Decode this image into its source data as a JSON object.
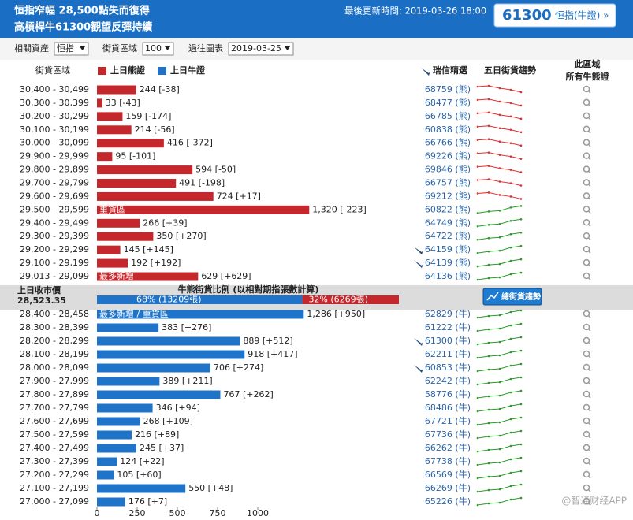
{
  "header": {
    "title_lines": [
      "恒指窄幅 28,500點失而復得",
      "高槓桿牛61300觀望反彈持續"
    ],
    "updated": "最後更新時間: 2019-03-26 18:00",
    "badge_code": "61300",
    "badge_name": "恒指(牛證) »"
  },
  "controls": [
    {
      "label": "相關資產",
      "value": "恒指"
    },
    {
      "label": "街貨區域",
      "value": "100"
    },
    {
      "label": "過往圖表",
      "value": "2019-03-25"
    }
  ],
  "columns": {
    "range": "街貨區域",
    "bear_legend": "上日熊證",
    "bull_legend": "上日牛證",
    "pick": "瑞信精選",
    "trend": "五日街貨趨勢",
    "all_lines": [
      "此區域",
      "所有牛熊證"
    ]
  },
  "colors": {
    "bear": "#c4272c",
    "bull": "#1f74c9"
  },
  "xlim": [
    0,
    1000
  ],
  "xticks": [
    0,
    250,
    500,
    750,
    1000
  ],
  "bear_rows": [
    {
      "range": "30,400 - 30,499",
      "value": 244,
      "label": "244 [-38]",
      "code": "68759 (熊)",
      "spark": "down"
    },
    {
      "range": "30,300 - 30,399",
      "value": 33,
      "label": "33 [-43]",
      "code": "68477 (熊)",
      "spark": "down"
    },
    {
      "range": "30,200 - 30,299",
      "value": 159,
      "label": "159 [-174]",
      "code": "66785 (熊)",
      "spark": "down"
    },
    {
      "range": "30,100 - 30,199",
      "value": 214,
      "label": "214 [-56]",
      "code": "60838 (熊)",
      "spark": "down"
    },
    {
      "range": "30,000 - 30,099",
      "value": 416,
      "label": "416 [-372]",
      "code": "66766 (熊)",
      "spark": "down"
    },
    {
      "range": "29,900 - 29,999",
      "value": 95,
      "label": "95 [-101]",
      "code": "69226 (熊)",
      "spark": "down"
    },
    {
      "range": "29,800 - 29,899",
      "value": 594,
      "label": "594 [-50]",
      "code": "69846 (熊)",
      "spark": "down"
    },
    {
      "range": "29,700 - 29,799",
      "value": 491,
      "label": "491 [-198]",
      "code": "66757 (熊)",
      "spark": "down"
    },
    {
      "range": "29,600 - 29,699",
      "value": 724,
      "label": "724 [+17]",
      "code": "69212 (熊)",
      "spark": "down"
    },
    {
      "range": "29,500 - 29,599",
      "value": 1320,
      "label": "1,320 [-223]",
      "code": "60822 (熊)",
      "spark": "up",
      "tag": "重貨區"
    },
    {
      "range": "29,400 - 29,499",
      "value": 266,
      "label": "266 [+39]",
      "code": "64749 (熊)",
      "spark": "up"
    },
    {
      "range": "29,300 - 29,399",
      "value": 350,
      "label": "350 [+270]",
      "code": "64722 (熊)",
      "spark": "up"
    },
    {
      "range": "29,200 - 29,299",
      "value": 145,
      "label": "145 [+145]",
      "code": "64159 (熊)",
      "spark": "up",
      "pick": true
    },
    {
      "range": "29,100 - 29,199",
      "value": 192,
      "label": "192 [+192]",
      "code": "64139 (熊)",
      "spark": "up",
      "pick": true
    },
    {
      "range": "29,013 - 29,099",
      "value": 629,
      "label": "629 [+629]",
      "code": "64136 (熊)",
      "spark": "up",
      "tag": "最多新增"
    }
  ],
  "middle": {
    "close_label": "上日收市價",
    "close_value": "28,523.35",
    "ratio_title": "牛熊街貨比例 (以相對期指張數計算)",
    "bull": {
      "value": 68,
      "label": "68% (13209張)"
    },
    "bear": {
      "value": 32,
      "label": "32% (6269張)"
    },
    "button": "總街貨趨勢"
  },
  "bull_rows": [
    {
      "range": "28,400 - 28,458",
      "value": 1286,
      "label": "1,286 [+950]",
      "code": "62829 (牛)",
      "spark": "up",
      "tag": "最多新增 / 重貨區"
    },
    {
      "range": "28,300 - 28,399",
      "value": 383,
      "label": "383 [+276]",
      "code": "61222 (牛)",
      "spark": "up"
    },
    {
      "range": "28,200 - 28,299",
      "value": 889,
      "label": "889 [+512]",
      "code": "61300 (牛)",
      "spark": "up",
      "pick": true
    },
    {
      "range": "28,100 - 28,199",
      "value": 918,
      "label": "918 [+417]",
      "code": "62211 (牛)",
      "spark": "up"
    },
    {
      "range": "28,000 - 28,099",
      "value": 706,
      "label": "706 [+274]",
      "code": "60853 (牛)",
      "spark": "up",
      "pick": true
    },
    {
      "range": "27,900 - 27,999",
      "value": 389,
      "label": "389 [+211]",
      "code": "62242 (牛)",
      "spark": "up"
    },
    {
      "range": "27,800 - 27,899",
      "value": 767,
      "label": "767 [+262]",
      "code": "58776 (牛)",
      "spark": "up"
    },
    {
      "range": "27,700 - 27,799",
      "value": 346,
      "label": "346 [+94]",
      "code": "68486 (牛)",
      "spark": "up"
    },
    {
      "range": "27,600 - 27,699",
      "value": 268,
      "label": "268 [+109]",
      "code": "67721 (牛)",
      "spark": "up"
    },
    {
      "range": "27,500 - 27,599",
      "value": 216,
      "label": "216 [+89]",
      "code": "67736 (牛)",
      "spark": "up"
    },
    {
      "range": "27,400 - 27,499",
      "value": 245,
      "label": "245 [+37]",
      "code": "66262 (牛)",
      "spark": "up"
    },
    {
      "range": "27,300 - 27,399",
      "value": 124,
      "label": "124 [+22]",
      "code": "67738 (牛)",
      "spark": "up"
    },
    {
      "range": "27,200 - 27,299",
      "value": 105,
      "label": "105 [+60]",
      "code": "66569 (牛)",
      "spark": "up"
    },
    {
      "range": "27,100 - 27,199",
      "value": 550,
      "label": "550 [+48]",
      "code": "66269 (牛)",
      "spark": "up"
    },
    {
      "range": "27,000 - 27,099",
      "value": 176,
      "label": "176 [+7]",
      "code": "65226 (牛)",
      "spark": "up"
    }
  ],
  "watermark": "@智通财经APP"
}
